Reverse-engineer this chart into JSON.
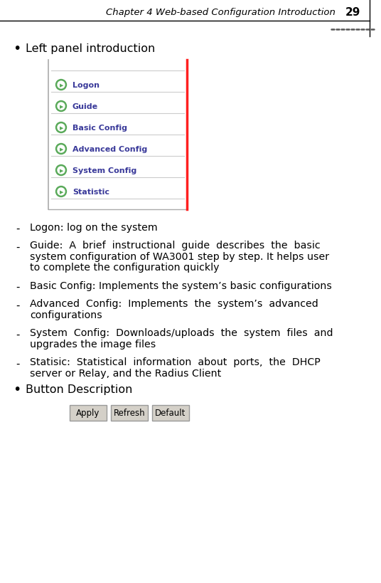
{
  "title": "Chapter 4 Web-based Configuration Introduction",
  "page_num": "29",
  "bg_color": "#ffffff",
  "bullet1": "Left panel introduction",
  "menu_items": [
    "Logon",
    "Guide",
    "Basic Config",
    "Advanced Config",
    "System Config",
    "Statistic"
  ],
  "menu_icon_color": "#5aaa5a",
  "menu_text_color": "#3a3a9a",
  "menu_bg": "#ffffff",
  "menu_border_left_color": "#999999",
  "menu_red_line": "#ff2020",
  "desc_items": [
    {
      "lines": [
        "Logon: log on the system"
      ]
    },
    {
      "lines": [
        "Guide:  A  brief  instructional  guide  describes  the  basic",
        "system configuration of WA3001 step by step. It helps user",
        "to complete the configuration quickly"
      ]
    },
    {
      "lines": [
        "Basic Config: Implements the system’s basic configurations"
      ]
    },
    {
      "lines": [
        "Advanced  Config:  Implements  the  system’s  advanced",
        "configurations"
      ]
    },
    {
      "lines": [
        "System  Config:  Downloads/uploads  the  system  files  and",
        "upgrades the image files"
      ]
    },
    {
      "lines": [
        "Statisic:  Statistical  information  about  ports,  the  DHCP",
        "server or Relay, and the Radius Client"
      ]
    }
  ],
  "bullet2": "Button Description",
  "button_labels": [
    "Apply",
    "Refresh",
    "Default"
  ],
  "button_bg": "#d4d0c8",
  "button_border": "#999999"
}
